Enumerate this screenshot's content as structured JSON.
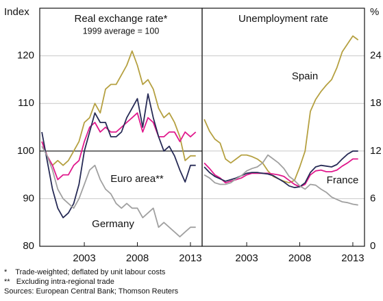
{
  "chart_data": [
    {
      "type": "line",
      "title": "Real exchange rate*",
      "subtitle": "1999 average = 100",
      "y_label": "Index",
      "x": [
        1999,
        1999.5,
        2000,
        2000.5,
        2001,
        2001.5,
        2002,
        2002.5,
        2003,
        2003.5,
        2004,
        2004.5,
        2005,
        2005.5,
        2006,
        2006.5,
        2007,
        2007.5,
        2008,
        2008.5,
        2009,
        2009.5,
        2010,
        2010.5,
        2011,
        2011.5,
        2012,
        2012.5,
        2013,
        2013.5
      ],
      "xlim": [
        1998.8,
        2014.1
      ],
      "xticks": [
        2003,
        2008,
        2013
      ],
      "ylim": [
        80,
        130
      ],
      "yticks": [
        80,
        90,
        100,
        110,
        120
      ],
      "reference_line": 100,
      "grid": true,
      "y_axis_side": "left",
      "series": [
        {
          "color": "#b5a040",
          "values": [
            102,
            99,
            97,
            98,
            97,
            98,
            100,
            102,
            106,
            107,
            110,
            108,
            113,
            114,
            114,
            116,
            118,
            121,
            118,
            114,
            115,
            113,
            109,
            107,
            108,
            106,
            103,
            98,
            99,
            99
          ]
        },
        {
          "color": "#e0188c",
          "values": [
            102,
            99,
            97,
            94,
            95,
            95,
            97,
            98,
            102,
            105,
            106,
            104,
            105,
            104,
            104,
            105,
            106,
            107,
            108,
            104,
            107,
            106,
            103,
            103,
            104,
            104,
            102,
            104,
            103,
            104
          ]
        },
        {
          "name": "Euro area**",
          "color": "#262a55",
          "values": [
            104,
            98,
            92,
            88,
            86,
            87,
            89,
            93,
            100,
            104,
            108,
            106,
            106,
            103,
            103,
            104,
            107,
            109,
            111,
            105,
            112,
            107,
            103,
            100,
            101,
            99,
            96,
            93.5,
            97,
            97
          ]
        },
        {
          "name": "Germany",
          "color": "#a0a0a0",
          "values": [
            101,
            99,
            96,
            92,
            90,
            89,
            88,
            90,
            93,
            96,
            97,
            94,
            92,
            91,
            89,
            88,
            89,
            88,
            88,
            86,
            87,
            88,
            84,
            85,
            84,
            83,
            82,
            83,
            84,
            84
          ]
        }
      ]
    },
    {
      "type": "line",
      "title": "Unemployment rate",
      "y_label": "%",
      "x": [
        1999,
        1999.5,
        2000,
        2000.5,
        2001,
        2001.5,
        2002,
        2002.5,
        2003,
        2003.5,
        2004,
        2004.5,
        2005,
        2005.5,
        2006,
        2006.5,
        2007,
        2007.5,
        2008,
        2008.5,
        2009,
        2009.5,
        2010,
        2010.5,
        2011,
        2011.5,
        2012,
        2012.5,
        2013,
        2013.5
      ],
      "xlim": [
        1998.8,
        2014.1
      ],
      "xticks": [
        2003,
        2008,
        2013
      ],
      "ylim": [
        0,
        30
      ],
      "yticks": [
        0,
        6,
        12,
        18,
        24
      ],
      "grid": true,
      "y_axis_side": "right",
      "series": [
        {
          "name": "Spain",
          "color": "#b5a040",
          "values": [
            16,
            14.5,
            13.5,
            13,
            11,
            10.5,
            11,
            11.5,
            11.5,
            11.3,
            11,
            10.5,
            9.5,
            8.8,
            8.5,
            8.2,
            8,
            8.3,
            10,
            12,
            17,
            18.5,
            19.5,
            20.3,
            21,
            22.5,
            24.5,
            25.5,
            26.5,
            26
          ]
        },
        {
          "name": "France",
          "color": "#e0188c",
          "values": [
            10.5,
            9.8,
            9,
            8.6,
            8,
            8.2,
            8.4,
            8.6,
            9,
            9.2,
            9.2,
            9.2,
            9.2,
            9.1,
            9,
            8.8,
            8.3,
            7.8,
            7.5,
            7.8,
            9,
            9.5,
            9.6,
            9.4,
            9.4,
            9.6,
            10.1,
            10.5,
            11,
            11
          ]
        },
        {
          "color": "#262a55",
          "values": [
            10,
            9.3,
            8.8,
            8.5,
            8.2,
            8.4,
            8.6,
            8.9,
            9.2,
            9.3,
            9.3,
            9.2,
            9.1,
            8.9,
            8.5,
            8.1,
            7.6,
            7.4,
            7.5,
            8,
            9.3,
            10,
            10.2,
            10.1,
            10,
            10.3,
            11,
            11.6,
            12,
            12
          ]
        },
        {
          "color": "#a0a0a0",
          "values": [
            9,
            8.6,
            8,
            7.8,
            7.8,
            8,
            8.5,
            8.9,
            9.5,
            9.8,
            10,
            10.5,
            11.5,
            11,
            10.5,
            9.8,
            8.8,
            8.3,
            7.6,
            7.2,
            7.8,
            7.7,
            7.2,
            6.8,
            6.2,
            5.9,
            5.6,
            5.5,
            5.3,
            5.2
          ]
        }
      ]
    }
  ],
  "notes": [
    "*    Trade-weighted; deflated by unit labour costs",
    "**   Excluding intra-regional trade",
    "Sources: European Central Bank; Thomson Reuters"
  ]
}
